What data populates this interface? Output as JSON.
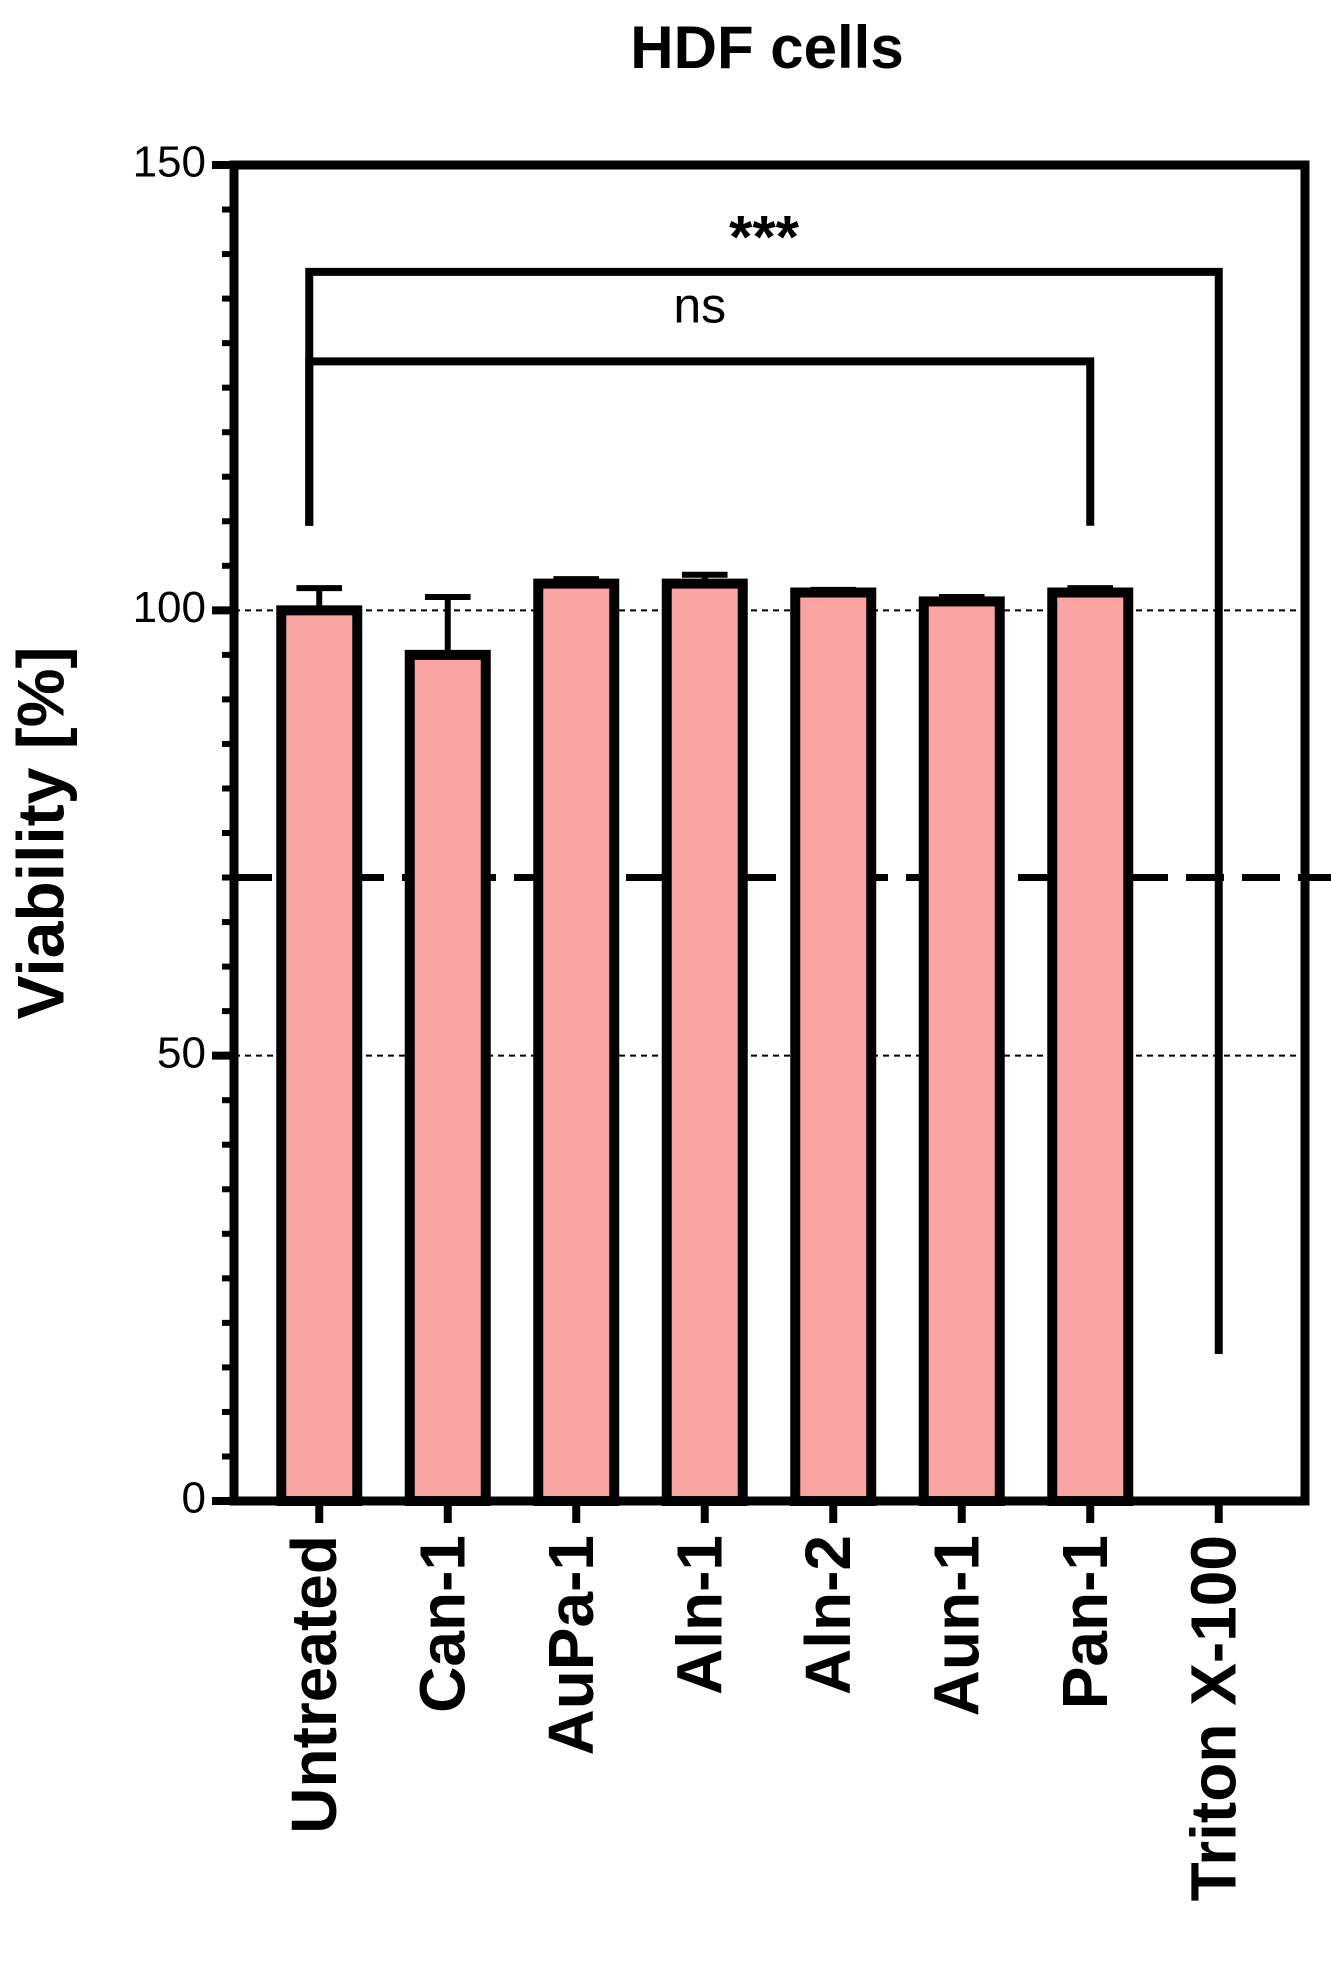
{
  "chart_data": {
    "type": "bar",
    "title": "HDF cells",
    "y_label": "Viability [%]",
    "categories": [
      "Untreated",
      "Can-1",
      "AuPa-1",
      "Aln-1",
      "Aln-2",
      "Aun-1",
      "Pan-1",
      "Triton X-100"
    ],
    "values": [
      100,
      95,
      103,
      103,
      102,
      101,
      102,
      0
    ],
    "errors": [
      2.5,
      6.5,
      0.5,
      1,
      0.3,
      0.5,
      0.5,
      0
    ],
    "color": "#f9a3a3",
    "ylim": [
      0,
      150
    ],
    "yticks": [
      0,
      50,
      100,
      150
    ],
    "grid": true,
    "threshold": 70,
    "annotations": [
      {
        "text": "***",
        "from": 0,
        "to": 7
      },
      {
        "text": "ns",
        "from": 0,
        "to": 6
      }
    ]
  }
}
